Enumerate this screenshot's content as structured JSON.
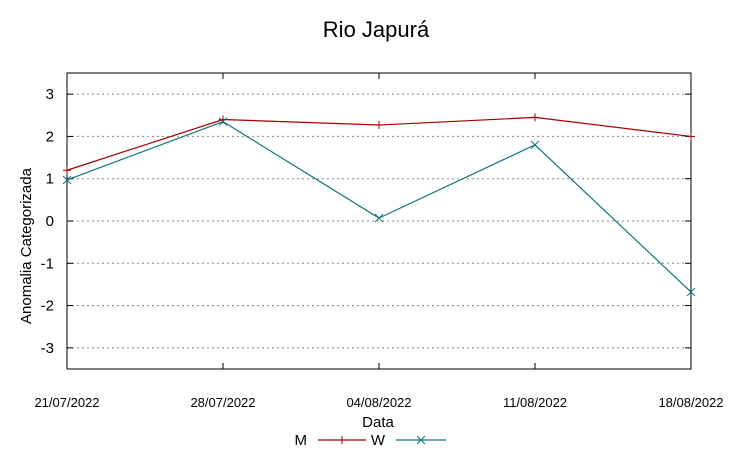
{
  "chart_data": {
    "type": "line",
    "title": "Rio Japurá",
    "xlabel": "Data",
    "ylabel": "Anomalia Categorizada",
    "categories": [
      "21/07/2022",
      "28/07/2022",
      "04/08/2022",
      "11/08/2022",
      "18/08/2022"
    ],
    "yticks": [
      3,
      2,
      1,
      0,
      -1,
      -2,
      -3
    ],
    "ylim": [
      -3.5,
      3.5
    ],
    "grid": true,
    "legend_position": "bottom-center",
    "series": [
      {
        "name": "M",
        "color": "#a40000",
        "marker": "plus",
        "values": [
          1.2,
          2.4,
          2.27,
          2.45,
          2.0
        ]
      },
      {
        "name": "W",
        "color": "#11787a",
        "marker": "cross",
        "values": [
          0.97,
          2.35,
          0.07,
          1.8,
          -1.68
        ]
      }
    ]
  }
}
